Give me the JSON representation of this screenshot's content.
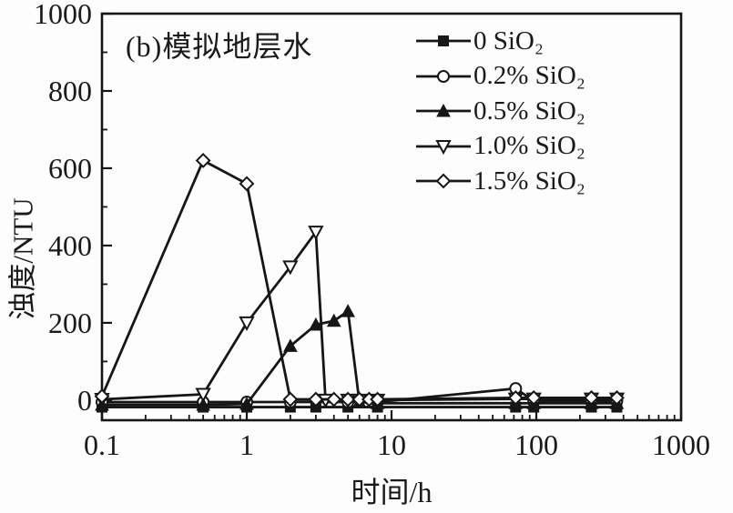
{
  "chart": {
    "title_inplot": "(b)模拟地层水",
    "xlabel": "时间/h",
    "ylabel": "浊度/NTU"
  },
  "chart_data": {
    "type": "line",
    "title": "(b)模拟地层水",
    "xlabel": "时间/h",
    "ylabel": "浊度/NTU",
    "x_scale": "log",
    "xlim": [
      0.1,
      1000
    ],
    "ylim": [
      -52,
      1000
    ],
    "x_ticks": [
      0.1,
      1,
      10,
      100,
      1000
    ],
    "x_tick_labels": [
      "0.1",
      "1",
      "10",
      "100",
      "1000"
    ],
    "y_ticks": [
      0,
      200,
      400,
      600,
      800,
      1000
    ],
    "y_tick_labels": [
      "0",
      "200",
      "400",
      "600",
      "800",
      "1000"
    ],
    "y_minor_ticks": [
      100,
      300,
      500,
      700,
      900
    ],
    "grid": false,
    "legend_position": "top-right-inside",
    "line_color": "#161616",
    "background_color": "#fdfdfd",
    "series": [
      {
        "name": "0 SiO₂",
        "marker": "square-filled",
        "points": [
          [
            0.1,
            -18
          ],
          [
            0.5,
            -18
          ],
          [
            1,
            -18
          ],
          [
            2,
            -18
          ],
          [
            3,
            -18
          ],
          [
            5,
            -18
          ],
          [
            8,
            -18
          ],
          [
            72,
            -18
          ],
          [
            96,
            -18
          ],
          [
            240,
            -18
          ],
          [
            360,
            -18
          ]
        ]
      },
      {
        "name": "0.2% SiO₂",
        "marker": "circle-open",
        "points": [
          [
            0.1,
            -5
          ],
          [
            0.5,
            -5
          ],
          [
            1,
            -5
          ],
          [
            2,
            -5
          ],
          [
            5,
            -5
          ],
          [
            8,
            -5
          ],
          [
            72,
            30
          ],
          [
            96,
            -2
          ],
          [
            240,
            -2
          ],
          [
            360,
            -2
          ]
        ]
      },
      {
        "name": "0.5% SiO₂",
        "marker": "triangle-up-filled",
        "points": [
          [
            0.1,
            -12
          ],
          [
            0.5,
            -12
          ],
          [
            1,
            -10
          ],
          [
            2,
            140
          ],
          [
            3,
            195
          ],
          [
            4,
            205
          ],
          [
            5,
            230
          ],
          [
            6,
            -5
          ],
          [
            8,
            -8
          ],
          [
            72,
            -8
          ],
          [
            96,
            -8
          ],
          [
            240,
            -8
          ],
          [
            360,
            -8
          ]
        ]
      },
      {
        "name": "1.0% SiO₂",
        "marker": "triangle-down-open",
        "points": [
          [
            0.1,
            2
          ],
          [
            0.5,
            15
          ],
          [
            1,
            200
          ],
          [
            2,
            345
          ],
          [
            3,
            435
          ],
          [
            3.5,
            0
          ],
          [
            5,
            0
          ],
          [
            6,
            0
          ],
          [
            8,
            0
          ],
          [
            72,
            3
          ],
          [
            96,
            3
          ],
          [
            240,
            3
          ],
          [
            360,
            3
          ]
        ]
      },
      {
        "name": "1.5% SiO₂",
        "marker": "diamond-open",
        "points": [
          [
            0.1,
            10
          ],
          [
            0.5,
            620
          ],
          [
            1,
            560
          ],
          [
            2,
            2
          ],
          [
            3,
            2
          ],
          [
            4,
            2
          ],
          [
            5,
            2
          ],
          [
            6,
            2
          ],
          [
            7,
            2
          ],
          [
            8,
            2
          ],
          [
            72,
            6
          ],
          [
            96,
            6
          ],
          [
            240,
            6
          ],
          [
            360,
            6
          ]
        ]
      }
    ]
  }
}
